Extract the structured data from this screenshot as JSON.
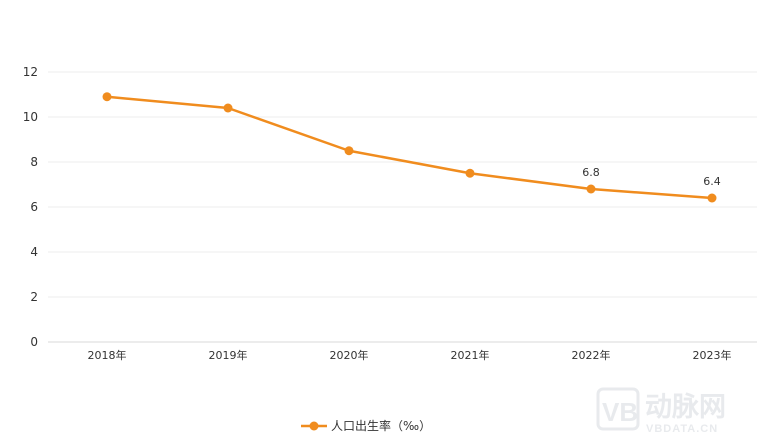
{
  "chart_data": {
    "type": "line",
    "categories": [
      "2018年",
      "2019年",
      "2020年",
      "2021年",
      "2022年",
      "2023年"
    ],
    "series": [
      {
        "name": "人口出生率（‰）",
        "values": [
          10.9,
          10.4,
          8.5,
          7.5,
          6.8,
          6.4
        ],
        "color": "#f08c1e"
      }
    ],
    "data_labels": [
      {
        "category": "2022年",
        "text": "6.8"
      },
      {
        "category": "2023年",
        "text": "6.4"
      }
    ],
    "yticks": [
      "0",
      "2",
      "4",
      "6",
      "8",
      "10",
      "12"
    ],
    "ylim": [
      0,
      12
    ],
    "grid": true,
    "legend_position": "bottom"
  },
  "watermark": {
    "logo_text": "动脉网",
    "url_text": "VBDATA.CN"
  }
}
